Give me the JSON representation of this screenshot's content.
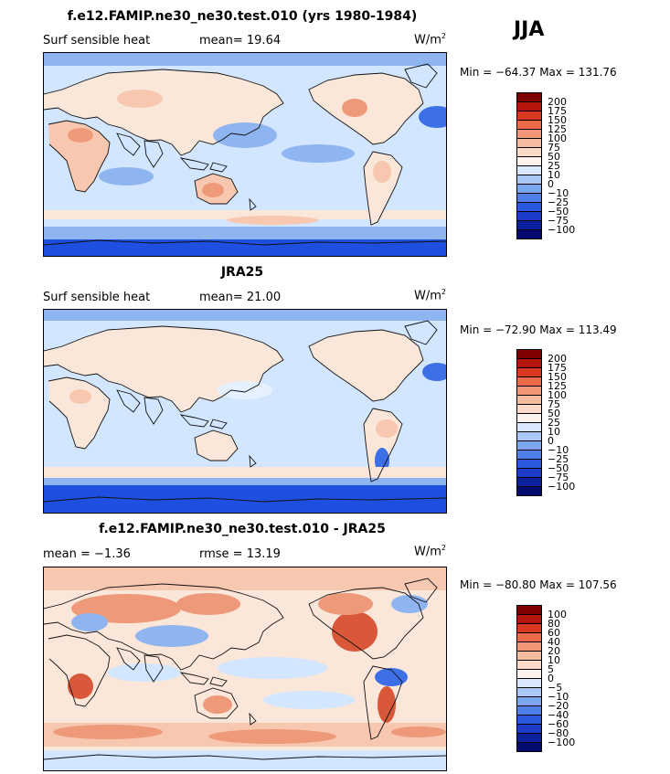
{
  "season": "JJA",
  "colors": {
    "ocean_base": "#d2e6ff",
    "ocean_light": "#e6f1ff",
    "cool_mid": "#8fb5f0",
    "cool_strong": "#3d6fe6",
    "cool_deep": "#1f4fe0",
    "land_base": "#fbe7da",
    "warm_light": "#f7c7b0",
    "warm_mid": "#ee9a7a",
    "warm_strong": "#d9583a",
    "coast": "#111111"
  },
  "panels": [
    {
      "title": "f.e12.FAMIP.ne30_ne30.test.010 (yrs 1980-1984)",
      "left_label": "Surf sensible heat",
      "mid_label": "mean=  19.64",
      "unit_base": "W/m",
      "unit_exp": "2",
      "minmax": "Min = −64.37 Max = 131.76",
      "colorbar": {
        "colors": [
          "#7f0000",
          "#b5150c",
          "#d9391f",
          "#ec6a45",
          "#f29677",
          "#f7bca0",
          "#fbdac8",
          "#fdf2ec",
          "#d9e8ff",
          "#a9c8f6",
          "#7aa5ef",
          "#4f7fe9",
          "#2c58e0",
          "#1c3bc9",
          "#0c1f9c",
          "#050a6e"
        ],
        "labels": [
          "200",
          "175",
          "150",
          "125",
          "100",
          "75",
          "50",
          "25",
          "10",
          "0",
          "−10",
          "−25",
          "−50",
          "−75",
          "−100"
        ]
      }
    },
    {
      "title": "JRA25",
      "left_label": "Surf sensible heat",
      "mid_label": "mean=  21.00",
      "unit_base": "W/m",
      "unit_exp": "2",
      "minmax": "Min = −72.90 Max = 113.49",
      "colorbar": {
        "colors": [
          "#7f0000",
          "#b5150c",
          "#d9391f",
          "#ec6a45",
          "#f29677",
          "#f7bca0",
          "#fbdac8",
          "#fdf2ec",
          "#d9e8ff",
          "#a9c8f6",
          "#7aa5ef",
          "#4f7fe9",
          "#2c58e0",
          "#1c3bc9",
          "#0c1f9c",
          "#050a6e"
        ],
        "labels": [
          "200",
          "175",
          "150",
          "125",
          "100",
          "75",
          "50",
          "25",
          "10",
          "0",
          "−10",
          "−25",
          "−50",
          "−75",
          "−100"
        ]
      }
    },
    {
      "title": "f.e12.FAMIP.ne30_ne30.test.010 - JRA25",
      "left_label": "mean =  −1.36",
      "mid_label": "rmse =  13.19",
      "unit_base": "W/m",
      "unit_exp": "2",
      "minmax": "Min = −80.80 Max = 107.56",
      "colorbar": {
        "colors": [
          "#7f0000",
          "#b5150c",
          "#d9391f",
          "#ec6a45",
          "#f29677",
          "#f7bca0",
          "#fbdac8",
          "#fdf2ec",
          "#d9e8ff",
          "#a9c8f6",
          "#7aa5ef",
          "#4f7fe9",
          "#2c58e0",
          "#1c3bc9",
          "#0c1f9c",
          "#050a6e"
        ],
        "labels": [
          "100",
          "80",
          "60",
          "40",
          "20",
          "10",
          "5",
          "0",
          "−5",
          "−10",
          "−20",
          "−40",
          "−60",
          "−80",
          "−100"
        ]
      }
    }
  ]
}
